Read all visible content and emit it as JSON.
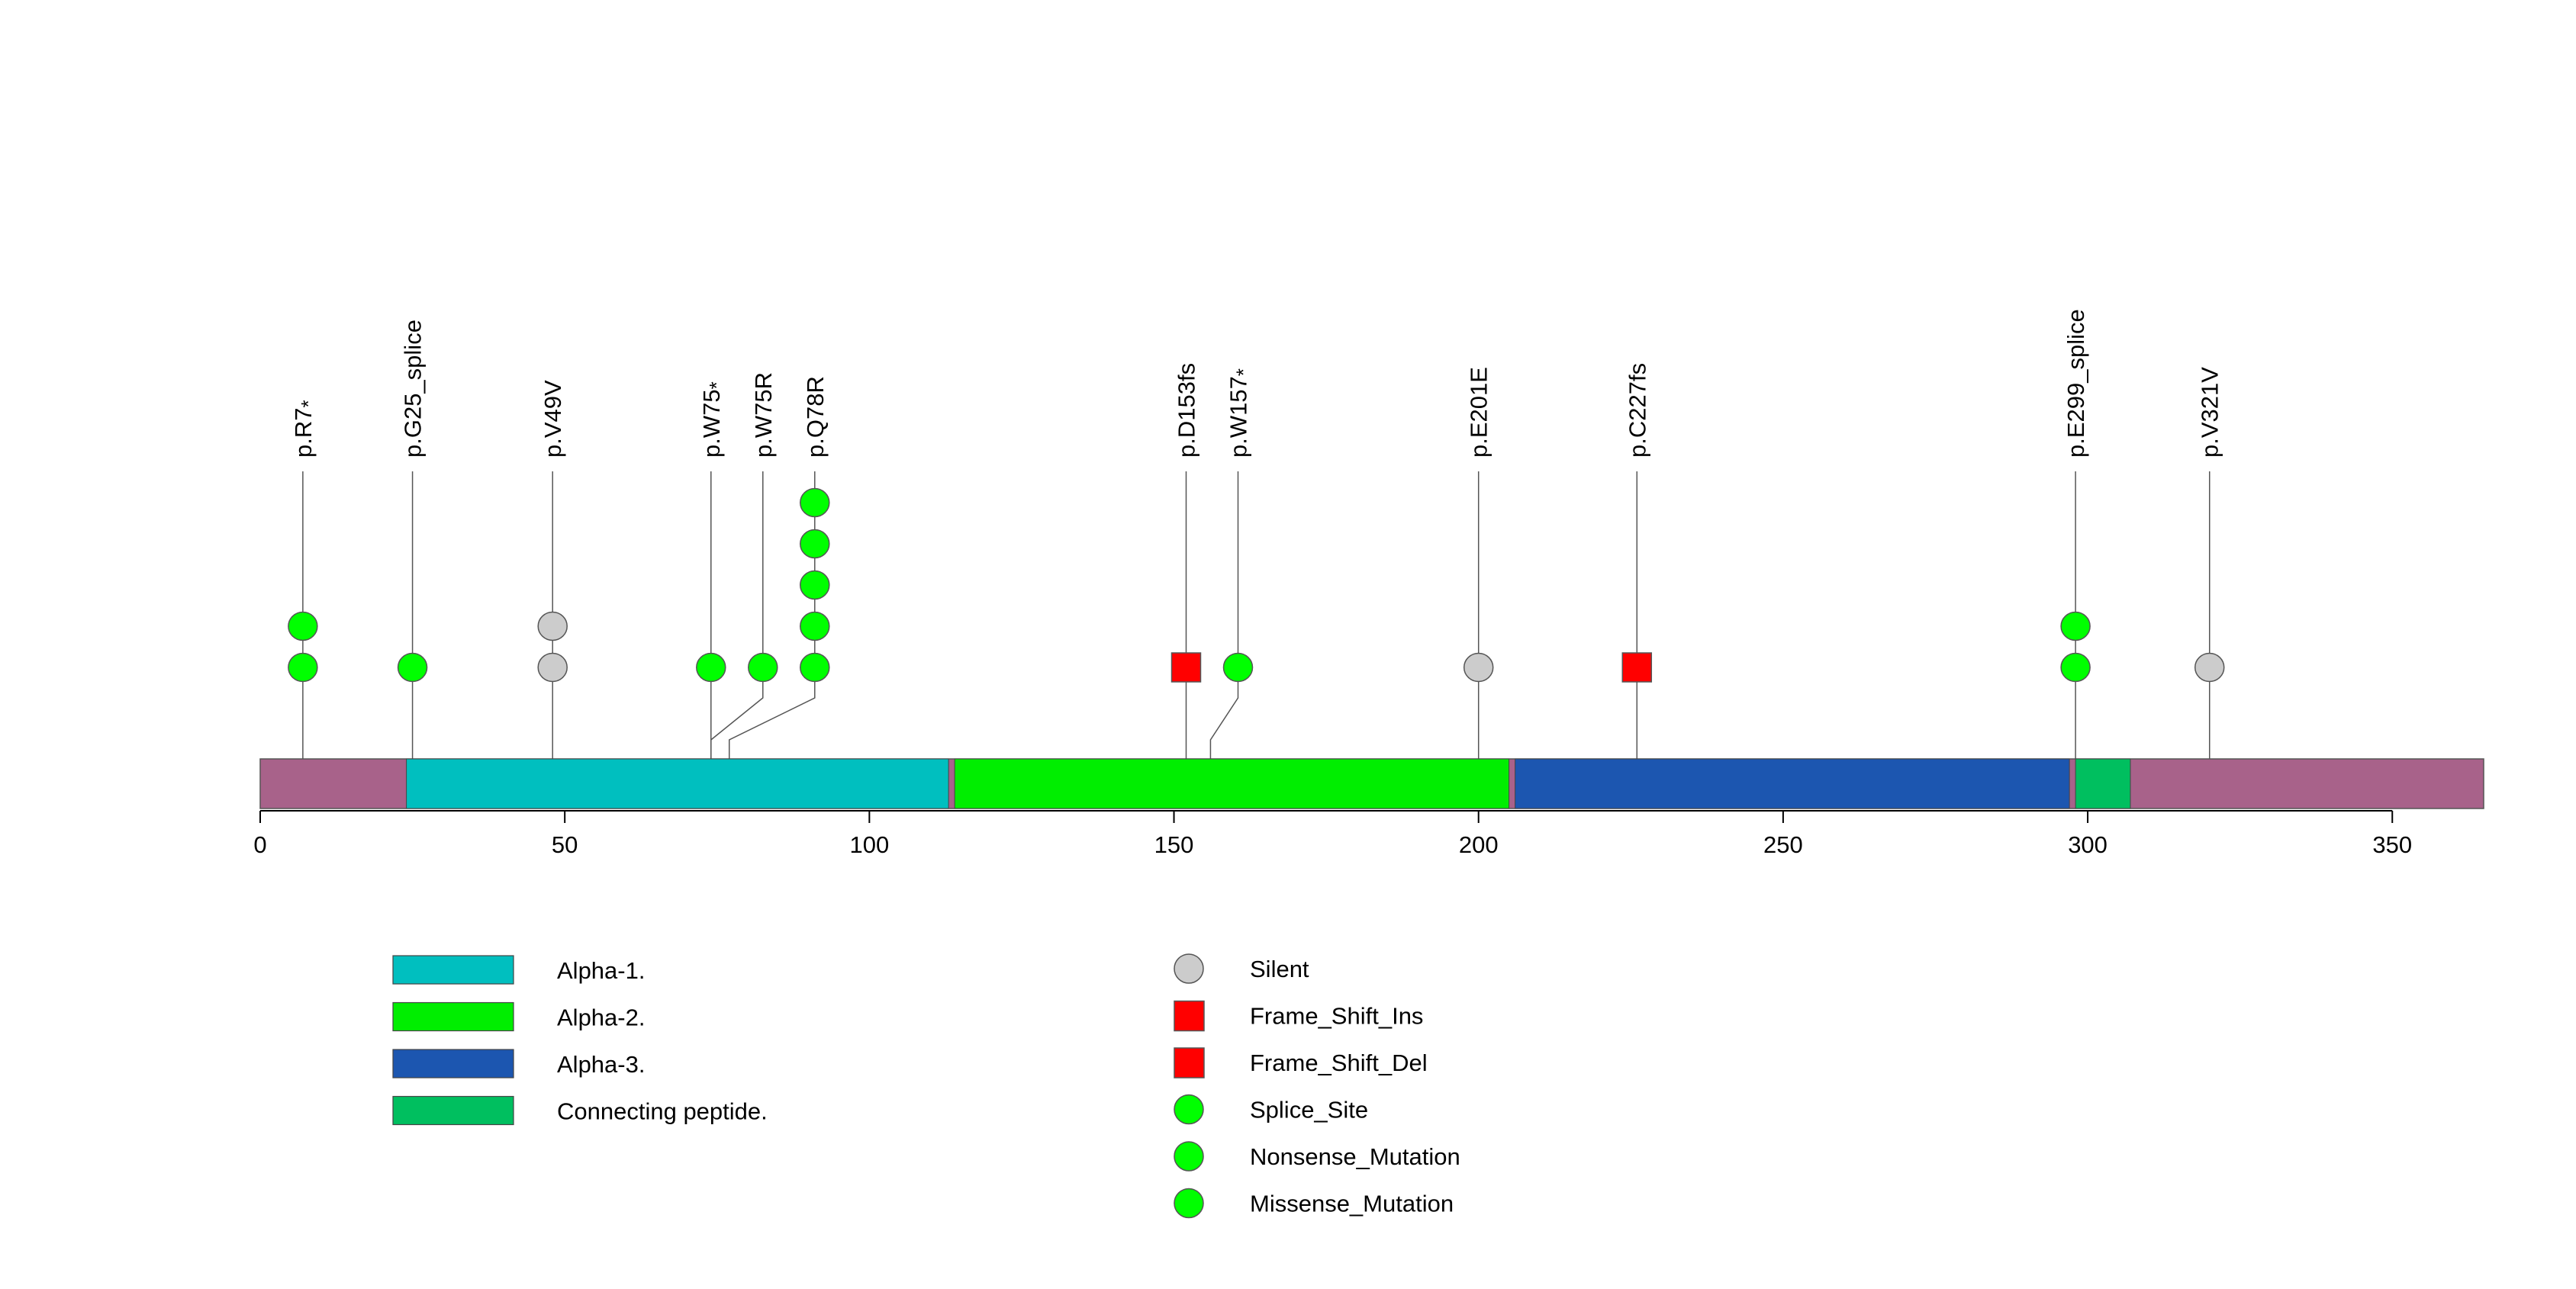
{
  "chart_data": {
    "type": "lollipop",
    "protein_length": 365,
    "x_ticks": [
      0,
      50,
      100,
      150,
      200,
      250,
      300,
      350
    ],
    "xlim": [
      0,
      365
    ],
    "grid": false,
    "domains": [
      {
        "name": "Alpha-1.",
        "start": 24,
        "end": 113,
        "color": "#00BFBF"
      },
      {
        "name": "Alpha-2.",
        "start": 114,
        "end": 205,
        "color": "#00EE00"
      },
      {
        "name": "Alpha-3.",
        "start": 206,
        "end": 297,
        "color": "#1C56B0"
      },
      {
        "name": "Connecting peptide.",
        "start": 298,
        "end": 307,
        "color": "#00BF5F"
      }
    ],
    "backbone_color": "#A8628A",
    "mutations": [
      {
        "label": "p.R7*",
        "label_main": "p.R7",
        "label_star": "*",
        "position": 7,
        "markers": [
          "Nonsense_Mutation",
          "Nonsense_Mutation"
        ]
      },
      {
        "label": "p.G25_splice",
        "label_main": "p.G25_splice",
        "label_star": "",
        "position": 25,
        "markers": [
          "Splice_Site"
        ]
      },
      {
        "label": "p.V49V",
        "label_main": "p.V49V",
        "label_star": "",
        "position": 48,
        "markers": [
          "Silent",
          "Silent"
        ]
      },
      {
        "label": "p.W75*",
        "label_main": "p.W75",
        "label_star": "*",
        "position": 74,
        "markers": [
          "Nonsense_Mutation"
        ]
      },
      {
        "label": "p.W75R",
        "label_main": "p.W75R",
        "label_star": "",
        "position": 74,
        "markers": [
          "Missense_Mutation"
        ]
      },
      {
        "label": "p.Q78R",
        "label_main": "p.Q78R",
        "label_star": "",
        "position": 77,
        "markers": [
          "Missense_Mutation",
          "Missense_Mutation",
          "Missense_Mutation",
          "Missense_Mutation",
          "Missense_Mutation"
        ]
      },
      {
        "label": "p.D153fs",
        "label_main": "p.D153fs",
        "label_star": "",
        "position": 152,
        "markers": [
          "Frame_Shift_Del"
        ]
      },
      {
        "label": "p.W157*",
        "label_main": "p.W157",
        "label_star": "*",
        "position": 156,
        "markers": [
          "Nonsense_Mutation"
        ]
      },
      {
        "label": "p.E201E",
        "label_main": "p.E201E",
        "label_star": "",
        "position": 200,
        "markers": [
          "Silent"
        ]
      },
      {
        "label": "p.C227fs",
        "label_main": "p.C227fs",
        "label_star": "",
        "position": 226,
        "markers": [
          "Frame_Shift_Del"
        ]
      },
      {
        "label": "p.E299_splice",
        "label_main": "p.E299_splice",
        "label_star": "",
        "position": 298,
        "markers": [
          "Splice_Site",
          "Splice_Site"
        ]
      },
      {
        "label": "p.V321V",
        "label_main": "p.V321V",
        "label_star": "",
        "position": 320,
        "markers": [
          "Silent"
        ]
      }
    ],
    "mutation_legend": [
      {
        "name": "Silent",
        "shape": "circle",
        "color": "#CCCCCC"
      },
      {
        "name": "Frame_Shift_Ins",
        "shape": "square",
        "color": "#FF0000"
      },
      {
        "name": "Frame_Shift_Del",
        "shape": "square",
        "color": "#FF0000"
      },
      {
        "name": "Splice_Site",
        "shape": "circle",
        "color": "#00FF00"
      },
      {
        "name": "Nonsense_Mutation",
        "shape": "circle",
        "color": "#00FF00"
      },
      {
        "name": "Missense_Mutation",
        "shape": "circle",
        "color": "#00FF00"
      }
    ]
  }
}
